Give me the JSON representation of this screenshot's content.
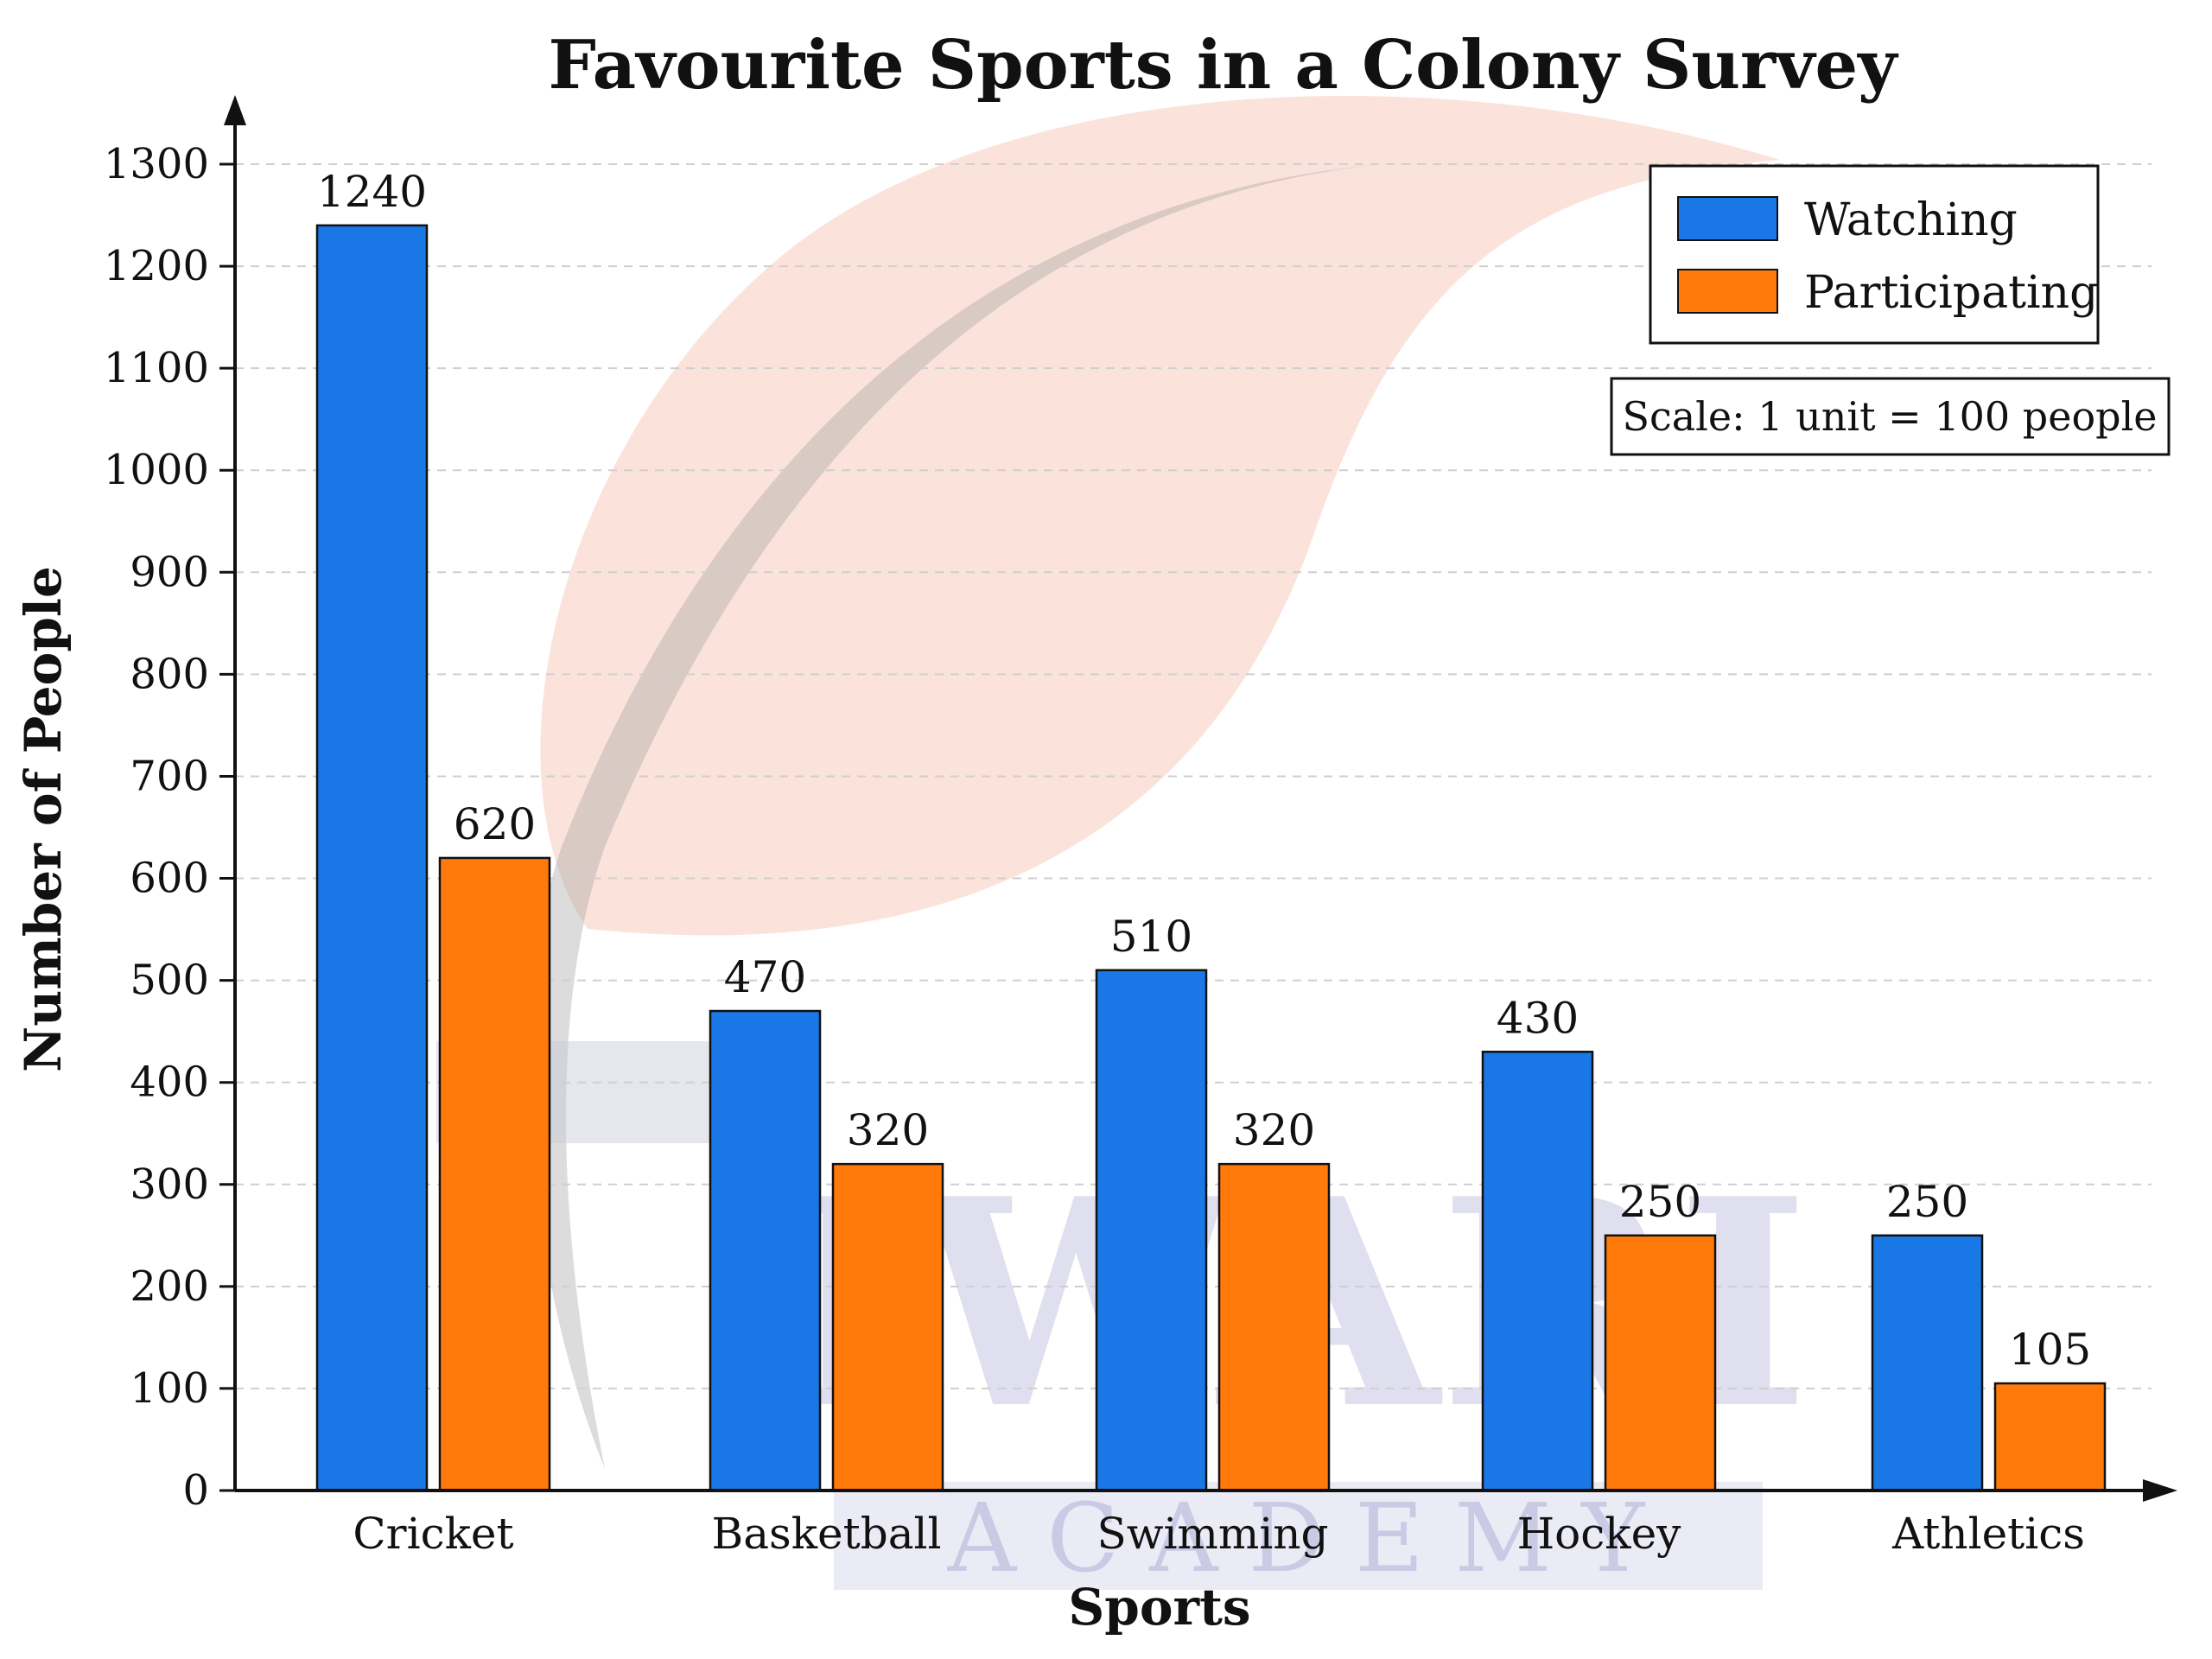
{
  "chart_data": {
    "type": "bar",
    "title": "Favourite Sports in a Colony Survey",
    "xlabel": "Sports",
    "ylabel": "Number of People",
    "categories": [
      "Cricket",
      "Basketball",
      "Swimming",
      "Hockey",
      "Athletics"
    ],
    "series": [
      {
        "name": "Watching",
        "color": "#1a78e6",
        "values": [
          1240,
          470,
          510,
          430,
          250
        ]
      },
      {
        "name": "Participating",
        "color": "#ff7a0a",
        "values": [
          620,
          320,
          320,
          250,
          105
        ]
      }
    ],
    "ylim": [
      0,
      1300
    ],
    "yticks": [
      0,
      100,
      200,
      300,
      400,
      500,
      600,
      700,
      800,
      900,
      1000,
      1100,
      1200,
      1300
    ],
    "grid": true,
    "legend_position": "top-right",
    "annotation": "Scale: 1 unit = 100 people"
  },
  "watermark": {
    "text_main": "IWARI",
    "text_sub": "A C A D E M Y"
  }
}
